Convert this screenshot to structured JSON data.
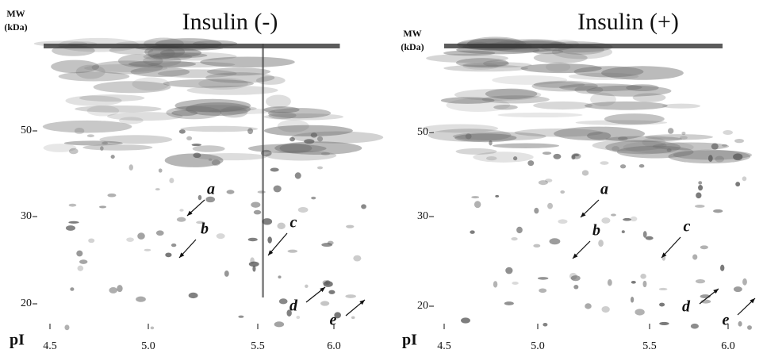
{
  "panels": [
    {
      "title": "Insulin (-)",
      "mw_label": "MW",
      "mw_unit": "(kDa)",
      "y_labels": [
        "50",
        "30",
        "20"
      ],
      "x_axis_label": "pI",
      "x_labels": [
        "4.5",
        "5.0",
        "5.5",
        "6.0"
      ],
      "arrows": [
        "a",
        "b",
        "c",
        "d",
        "e"
      ]
    },
    {
      "title": "Insulin (+)",
      "mw_label": "MW",
      "mw_unit": "(kDa)",
      "y_labels": [
        "50",
        "30",
        "20"
      ],
      "x_axis_label": "pI",
      "x_labels": [
        "4.5",
        "5.0",
        "5.5",
        "6.0"
      ],
      "arrows": [
        "a",
        "b",
        "c",
        "d",
        "e"
      ]
    }
  ]
}
